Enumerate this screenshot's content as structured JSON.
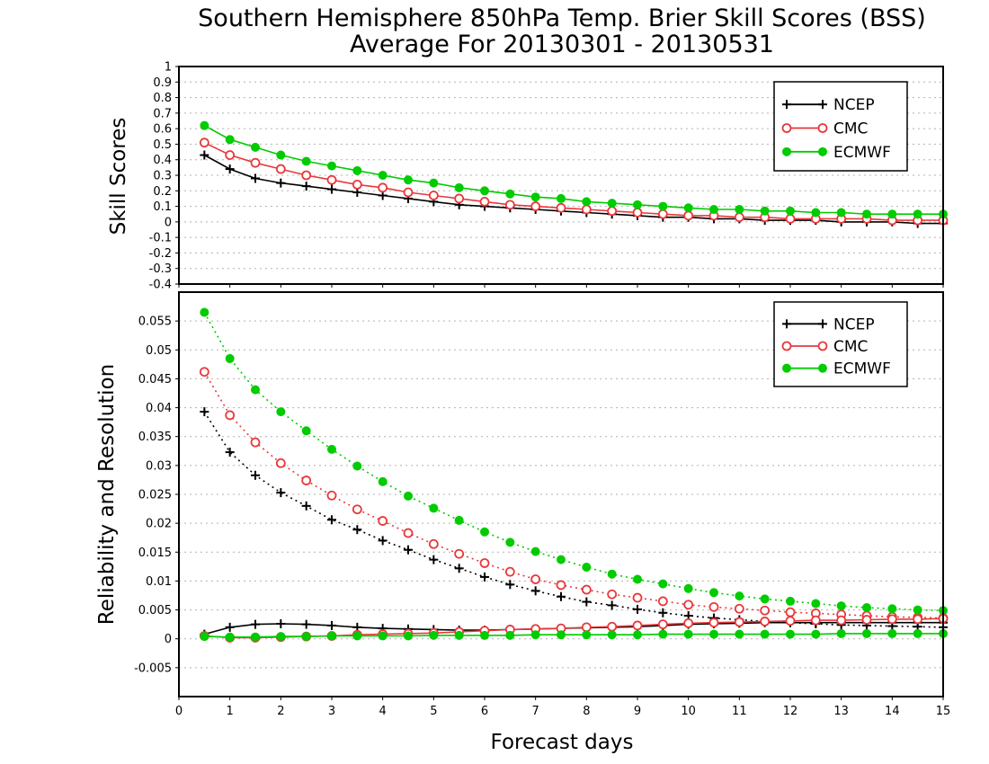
{
  "title": {
    "line1": "Southern Hemisphere 850hPa Temp. Brier Skill Scores (BSS)",
    "line2": "Average For 20130301 - 20130531"
  },
  "xaxis": {
    "label": "Forecast days",
    "ticks": [
      "0",
      "1",
      "2",
      "3",
      "4",
      "5",
      "6",
      "7",
      "8",
      "9",
      "10",
      "11",
      "12",
      "13",
      "14",
      "15"
    ]
  },
  "legend_entries": [
    {
      "name": "NCEP",
      "color": "#000000",
      "marker": "plus"
    },
    {
      "name": "CMC",
      "color": "#e8383b",
      "marker": "open-circle"
    },
    {
      "name": "ECMWF",
      "color": "#00cc00",
      "marker": "filled-circle"
    }
  ],
  "chart_data": [
    {
      "type": "line",
      "ylabel": "Skill Scores",
      "xlim": [
        0,
        15
      ],
      "ylim": [
        -0.4,
        1
      ],
      "yticks": [
        "-0.4",
        "-0.3",
        "-0.2",
        "-0.1",
        "0",
        "0.1",
        "0.2",
        "0.3",
        "0.4",
        "0.5",
        "0.6",
        "0.7",
        "0.8",
        "0.9",
        "1"
      ],
      "grid": true,
      "legend": "top-right",
      "x": [
        0.5,
        1,
        1.5,
        2,
        2.5,
        3,
        3.5,
        4,
        4.5,
        5,
        5.5,
        6,
        6.5,
        7,
        7.5,
        8,
        8.5,
        9,
        9.5,
        10,
        10.5,
        11,
        11.5,
        12,
        12.5,
        13,
        13.5,
        14,
        14.5,
        15
      ],
      "series": [
        {
          "name": "NCEP",
          "color": "#000000",
          "marker": "plus",
          "dash": "solid",
          "values": [
            0.43,
            0.34,
            0.28,
            0.25,
            0.23,
            0.21,
            0.19,
            0.17,
            0.15,
            0.13,
            0.11,
            0.1,
            0.09,
            0.08,
            0.07,
            0.06,
            0.05,
            0.04,
            0.03,
            0.03,
            0.02,
            0.02,
            0.01,
            0.01,
            0.01,
            0.0,
            0.0,
            0.0,
            -0.01,
            -0.01
          ]
        },
        {
          "name": "CMC",
          "color": "#e8383b",
          "marker": "open-circle",
          "dash": "solid",
          "values": [
            0.51,
            0.43,
            0.38,
            0.34,
            0.3,
            0.27,
            0.24,
            0.22,
            0.19,
            0.17,
            0.15,
            0.13,
            0.11,
            0.1,
            0.09,
            0.08,
            0.07,
            0.06,
            0.05,
            0.04,
            0.04,
            0.03,
            0.03,
            0.02,
            0.02,
            0.02,
            0.02,
            0.01,
            0.01,
            0.01
          ]
        },
        {
          "name": "ECMWF",
          "color": "#00cc00",
          "marker": "filled-circle",
          "dash": "solid",
          "values": [
            0.62,
            0.53,
            0.48,
            0.43,
            0.39,
            0.36,
            0.33,
            0.3,
            0.27,
            0.25,
            0.22,
            0.2,
            0.18,
            0.16,
            0.15,
            0.13,
            0.12,
            0.11,
            0.1,
            0.09,
            0.08,
            0.08,
            0.07,
            0.07,
            0.06,
            0.06,
            0.05,
            0.05,
            0.05,
            0.05
          ]
        }
      ]
    },
    {
      "type": "line",
      "ylabel": "Reliability and Resolution",
      "xlim": [
        0,
        15
      ],
      "ylim": [
        -0.01,
        0.06
      ],
      "yticks": [
        "-0.005",
        "0",
        "0.005",
        "0.01",
        "0.015",
        "0.02",
        "0.025",
        "0.03",
        "0.035",
        "0.04",
        "0.045",
        "0.05",
        "0.055"
      ],
      "grid": true,
      "legend": "top-right",
      "x": [
        0.5,
        1,
        1.5,
        2,
        2.5,
        3,
        3.5,
        4,
        4.5,
        5,
        5.5,
        6,
        6.5,
        7,
        7.5,
        8,
        8.5,
        9,
        9.5,
        10,
        10.5,
        11,
        11.5,
        12,
        12.5,
        13,
        13.5,
        14,
        14.5,
        15
      ],
      "series": [
        {
          "name": "NCEP",
          "color": "#000000",
          "marker": "plus",
          "dash": "dotted",
          "values": [
            0.0393,
            0.0323,
            0.0283,
            0.0253,
            0.023,
            0.0206,
            0.0189,
            0.017,
            0.0154,
            0.0137,
            0.0122,
            0.0107,
            0.0094,
            0.0083,
            0.0073,
            0.0064,
            0.0058,
            0.0051,
            0.0045,
            0.004,
            0.0036,
            0.0033,
            0.003,
            0.0028,
            0.0026,
            0.0024,
            0.0023,
            0.0022,
            0.0021,
            0.002
          ]
        },
        {
          "name": "CMC",
          "color": "#e8383b",
          "marker": "open-circle",
          "dash": "dotted",
          "values": [
            0.0462,
            0.0387,
            0.034,
            0.0304,
            0.0274,
            0.0248,
            0.0224,
            0.0204,
            0.0183,
            0.0164,
            0.0147,
            0.0131,
            0.0116,
            0.0103,
            0.0093,
            0.0085,
            0.0077,
            0.0071,
            0.0065,
            0.0059,
            0.0055,
            0.0052,
            0.0049,
            0.0046,
            0.0044,
            0.0042,
            0.004,
            0.0038,
            0.0037,
            0.0036
          ]
        },
        {
          "name": "ECMWF",
          "color": "#00cc00",
          "marker": "filled-circle",
          "dash": "dotted",
          "values": [
            0.0565,
            0.0485,
            0.0431,
            0.0393,
            0.036,
            0.0328,
            0.0299,
            0.0272,
            0.0247,
            0.0226,
            0.0205,
            0.0185,
            0.0167,
            0.0151,
            0.0137,
            0.0124,
            0.0112,
            0.0103,
            0.0095,
            0.0087,
            0.008,
            0.0074,
            0.0069,
            0.0065,
            0.0061,
            0.0057,
            0.0054,
            0.0052,
            0.005,
            0.0049
          ]
        },
        {
          "name": "NCEP",
          "color": "#000000",
          "marker": "plus",
          "dash": "solid",
          "values": [
            0.0008,
            0.002,
            0.0025,
            0.0026,
            0.0025,
            0.0023,
            0.002,
            0.0018,
            0.0017,
            0.0016,
            0.0015,
            0.0015,
            0.0016,
            0.0017,
            0.0018,
            0.0019,
            0.002,
            0.0021,
            0.0023,
            0.0025,
            0.0026,
            0.0027,
            0.0028,
            0.0028,
            0.0028,
            0.0028,
            0.0028,
            0.0028,
            0.0028,
            0.0028
          ]
        },
        {
          "name": "CMC",
          "color": "#e8383b",
          "marker": "open-circle",
          "dash": "solid",
          "values": [
            0.0005,
            0.0002,
            0.0002,
            0.0003,
            0.0004,
            0.0005,
            0.0007,
            0.0008,
            0.0009,
            0.001,
            0.0012,
            0.0014,
            0.0016,
            0.0017,
            0.0018,
            0.002,
            0.0021,
            0.0023,
            0.0025,
            0.0027,
            0.0028,
            0.0029,
            0.003,
            0.0031,
            0.0032,
            0.0032,
            0.0033,
            0.0034,
            0.0034,
            0.0035
          ]
        },
        {
          "name": "ECMWF",
          "color": "#00cc00",
          "marker": "filled-circle",
          "dash": "solid",
          "values": [
            0.0004,
            0.0003,
            0.0003,
            0.0004,
            0.0004,
            0.0005,
            0.0005,
            0.0005,
            0.0005,
            0.0006,
            0.0006,
            0.0006,
            0.0006,
            0.0007,
            0.0007,
            0.0007,
            0.0007,
            0.0007,
            0.0008,
            0.0008,
            0.0008,
            0.0008,
            0.0008,
            0.0008,
            0.0008,
            0.0009,
            0.0009,
            0.0009,
            0.0009,
            0.0009
          ]
        }
      ]
    }
  ]
}
